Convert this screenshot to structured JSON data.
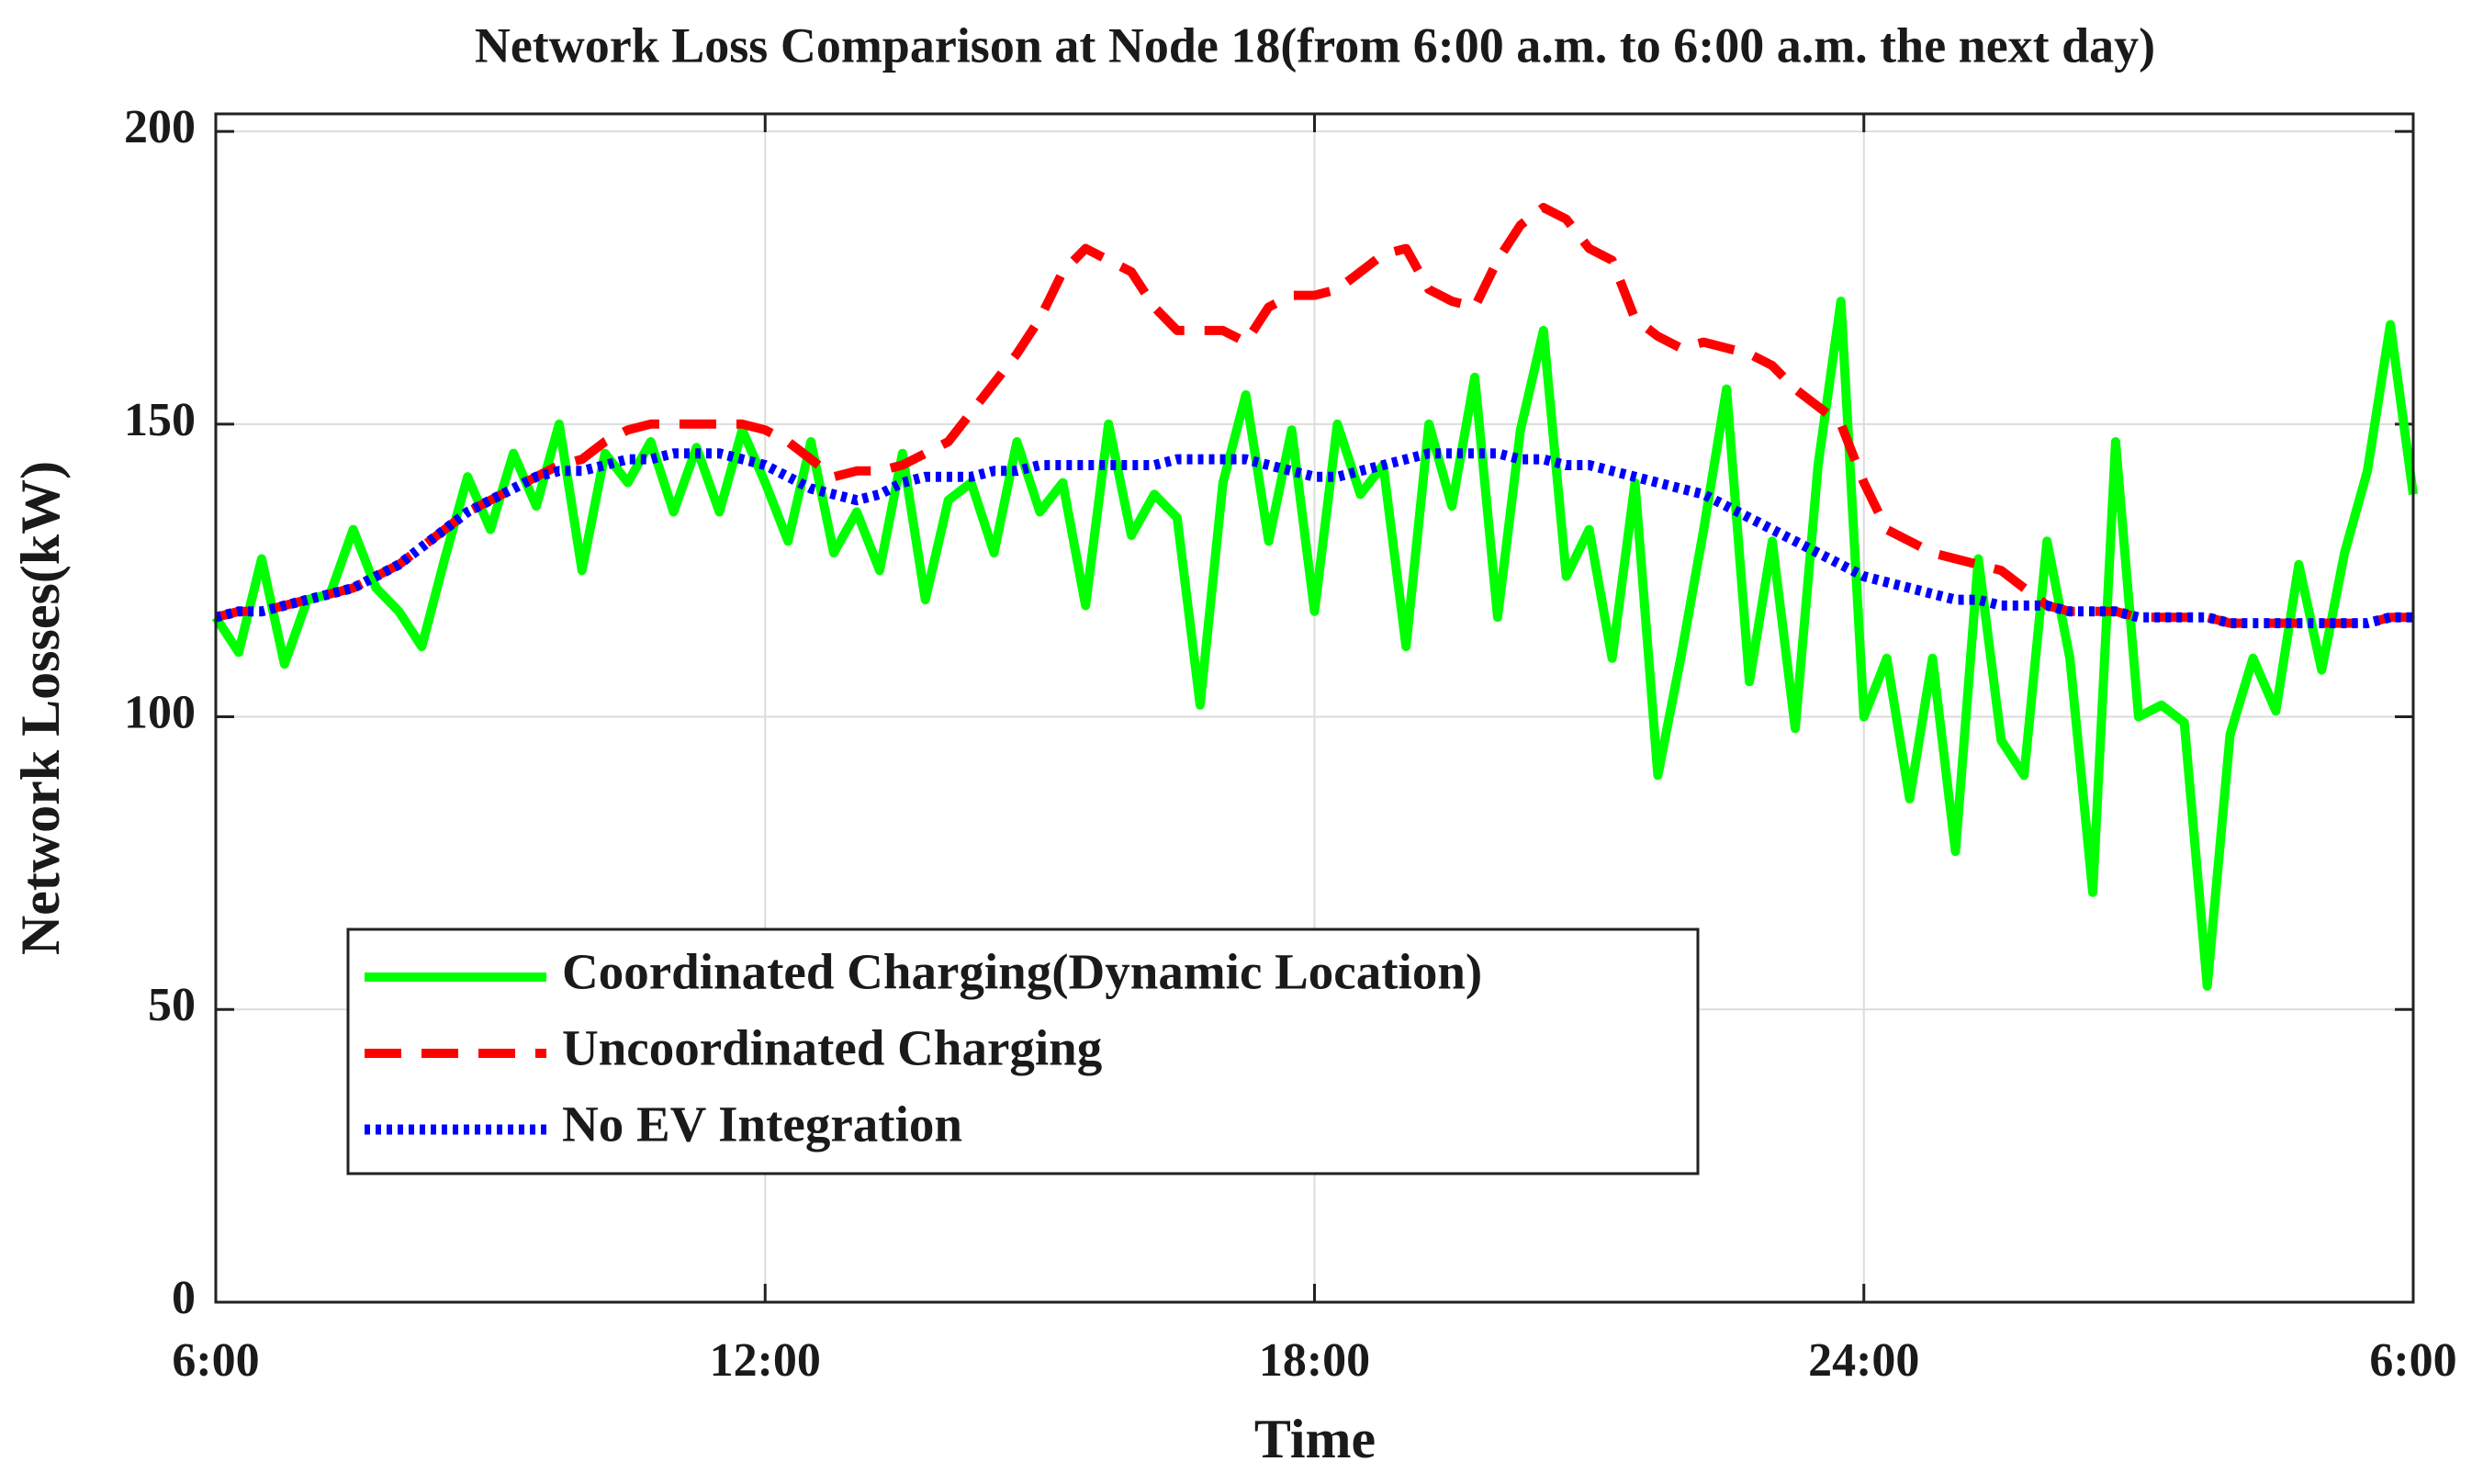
{
  "chart_data": {
    "type": "line",
    "title": "Network Loss Comparison at Node 18(from 6:00 a.m. to 6:00 a.m. the next day)",
    "x_label": "Time",
    "y_label": "Network Losses(kW)",
    "x": [
      6,
      6.25,
      6.5,
      6.75,
      7,
      7.25,
      7.5,
      7.75,
      8,
      8.25,
      8.5,
      8.75,
      9,
      9.25,
      9.5,
      9.75,
      10,
      10.25,
      10.5,
      10.75,
      11,
      11.25,
      11.5,
      11.75,
      12,
      12.25,
      12.5,
      12.75,
      13,
      13.25,
      13.5,
      13.75,
      14,
      14.25,
      14.5,
      14.75,
      15,
      15.25,
      15.5,
      15.75,
      16,
      16.25,
      16.5,
      16.75,
      17,
      17.25,
      17.5,
      17.75,
      18,
      18.25,
      18.5,
      18.75,
      19,
      19.25,
      19.5,
      19.75,
      20,
      20.25,
      20.5,
      20.75,
      21,
      21.25,
      21.5,
      21.75,
      22,
      22.25,
      22.5,
      22.75,
      23,
      23.25,
      23.5,
      23.75,
      24,
      24.25,
      24.5,
      24.75,
      25,
      25.25,
      25.5,
      25.75,
      26,
      26.25,
      26.5,
      26.75,
      27,
      27.25,
      27.5,
      27.75,
      28,
      28.25,
      28.5,
      28.75,
      29,
      29.25,
      29.5,
      29.75,
      30
    ],
    "series": [
      {
        "name": "Coordinated Charging(Dynamic Location)",
        "color": "#00ff00",
        "style": "solid",
        "values": [
          117,
          111,
          127,
          109,
          120,
          121,
          132,
          122,
          118,
          112,
          127,
          141,
          132,
          145,
          136,
          150,
          125,
          145,
          140,
          147,
          135,
          146,
          135,
          149,
          140,
          130,
          147,
          128,
          135,
          125,
          145,
          120,
          137,
          140,
          128,
          147,
          135,
          140,
          119,
          150,
          131,
          138,
          134,
          102,
          140,
          155,
          130,
          149,
          118,
          150,
          138,
          143,
          112,
          150,
          136,
          158,
          117,
          149,
          166,
          124,
          132,
          110,
          140,
          90,
          110,
          132,
          156,
          106,
          130,
          98,
          143,
          171,
          100,
          110,
          86,
          110,
          77,
          127,
          96,
          90,
          130,
          110,
          70,
          147,
          100,
          102,
          99,
          54,
          97,
          110,
          101,
          126,
          108,
          128,
          142,
          167,
          138
        ]
      },
      {
        "name": "Uncoordinated Charging",
        "color": "#ff0000",
        "style": "dashed",
        "values": [
          117,
          118,
          118,
          119,
          120,
          121,
          122,
          124,
          126,
          129,
          132,
          135,
          137,
          139,
          141,
          143,
          144,
          147,
          149,
          150,
          150,
          150,
          150,
          150,
          149,
          147,
          144,
          141,
          142,
          142,
          143,
          145,
          147,
          152,
          157,
          162,
          168,
          176,
          180,
          178,
          176,
          170,
          166,
          166,
          166,
          164,
          170,
          172,
          172,
          173,
          176,
          179,
          180,
          173,
          171,
          170,
          178,
          184,
          187,
          185,
          180,
          178,
          168,
          165,
          163,
          164,
          163,
          162,
          160,
          156,
          153,
          150,
          140,
          132,
          130,
          128,
          127,
          126,
          125,
          122,
          119,
          118,
          118,
          118,
          117,
          117,
          117,
          117,
          116,
          116,
          116,
          116,
          116,
          116,
          116,
          117,
          117
        ]
      },
      {
        "name": "No EV Integration",
        "color": "#0000ff",
        "style": "dotted",
        "values": [
          117,
          118,
          118,
          119,
          120,
          121,
          122,
          124,
          126,
          129,
          132,
          135,
          137,
          139,
          141,
          142,
          142,
          143,
          144,
          144,
          145,
          145,
          145,
          144,
          143,
          141,
          139,
          138,
          137,
          138,
          140,
          141,
          141,
          141,
          142,
          142,
          143,
          143,
          143,
          143,
          143,
          143,
          144,
          144,
          144,
          144,
          143,
          142,
          141,
          141,
          142,
          143,
          144,
          145,
          145,
          145,
          145,
          144,
          144,
          143,
          143,
          142,
          141,
          140,
          139,
          138,
          136,
          134,
          132,
          130,
          128,
          126,
          124,
          123,
          122,
          121,
          120,
          120,
          119,
          119,
          119,
          118,
          118,
          118,
          117,
          117,
          117,
          117,
          116,
          116,
          116,
          116,
          116,
          116,
          116,
          117,
          117
        ]
      }
    ],
    "xlim": [
      6,
      30
    ],
    "xticks": [
      {
        "value": 6,
        "label": "6:00"
      },
      {
        "value": 12,
        "label": "12:00"
      },
      {
        "value": 18,
        "label": "18:00"
      },
      {
        "value": 24,
        "label": "24:00"
      },
      {
        "value": 30,
        "label": "6:00"
      }
    ],
    "ylim": [
      0,
      203
    ],
    "yticks": [
      0,
      50,
      100,
      150,
      200
    ],
    "grid": true,
    "legend": "lower left"
  }
}
